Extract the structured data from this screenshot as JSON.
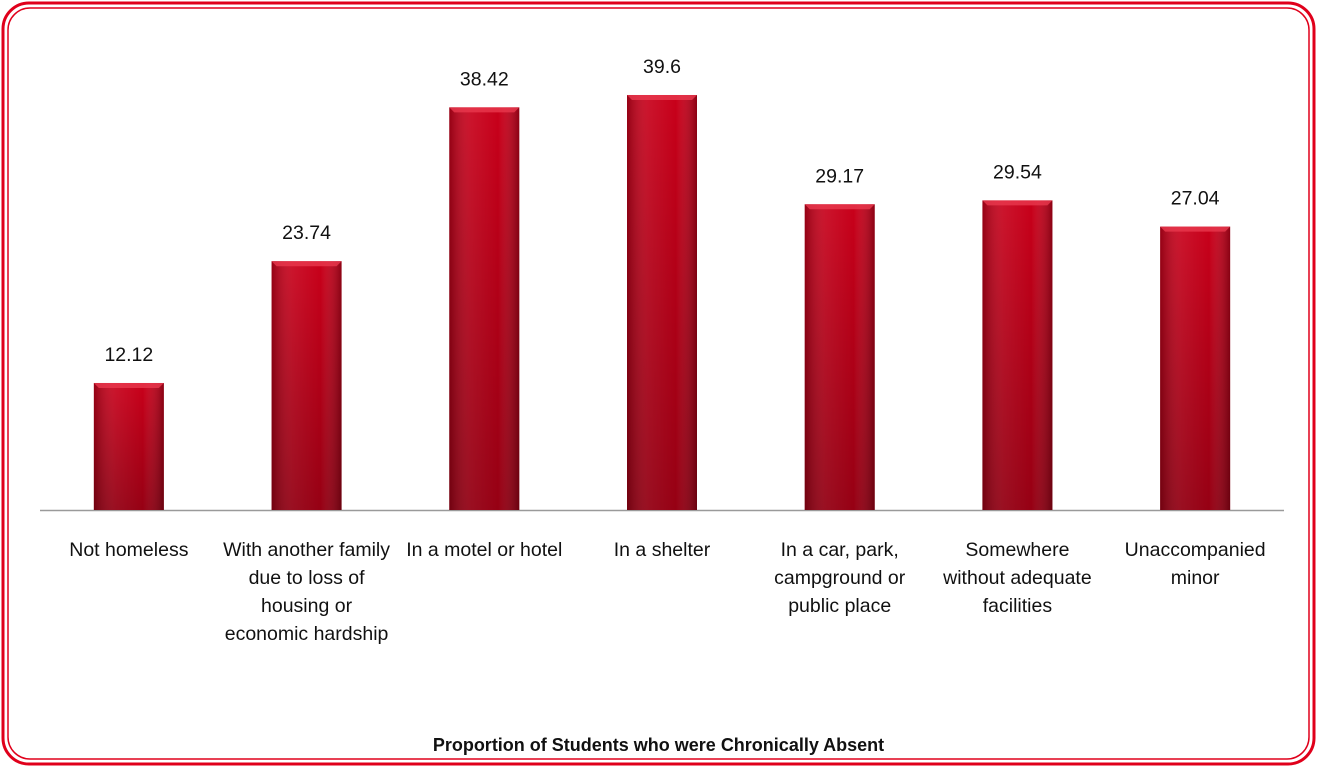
{
  "chart_data": {
    "type": "bar",
    "title": "Proportion of Students who were Chronically Absent",
    "categories": [
      "Not homeless",
      "With another family due to loss of housing or economic hardship",
      "In a motel or hotel",
      "In a shelter",
      "In a car, park, campground or public place",
      "Somewhere without adequate facilities",
      "Unaccompanied minor"
    ],
    "values": [
      12.12,
      23.74,
      38.42,
      39.6,
      29.17,
      29.54,
      27.04
    ],
    "color": "#c8001a"
  }
}
